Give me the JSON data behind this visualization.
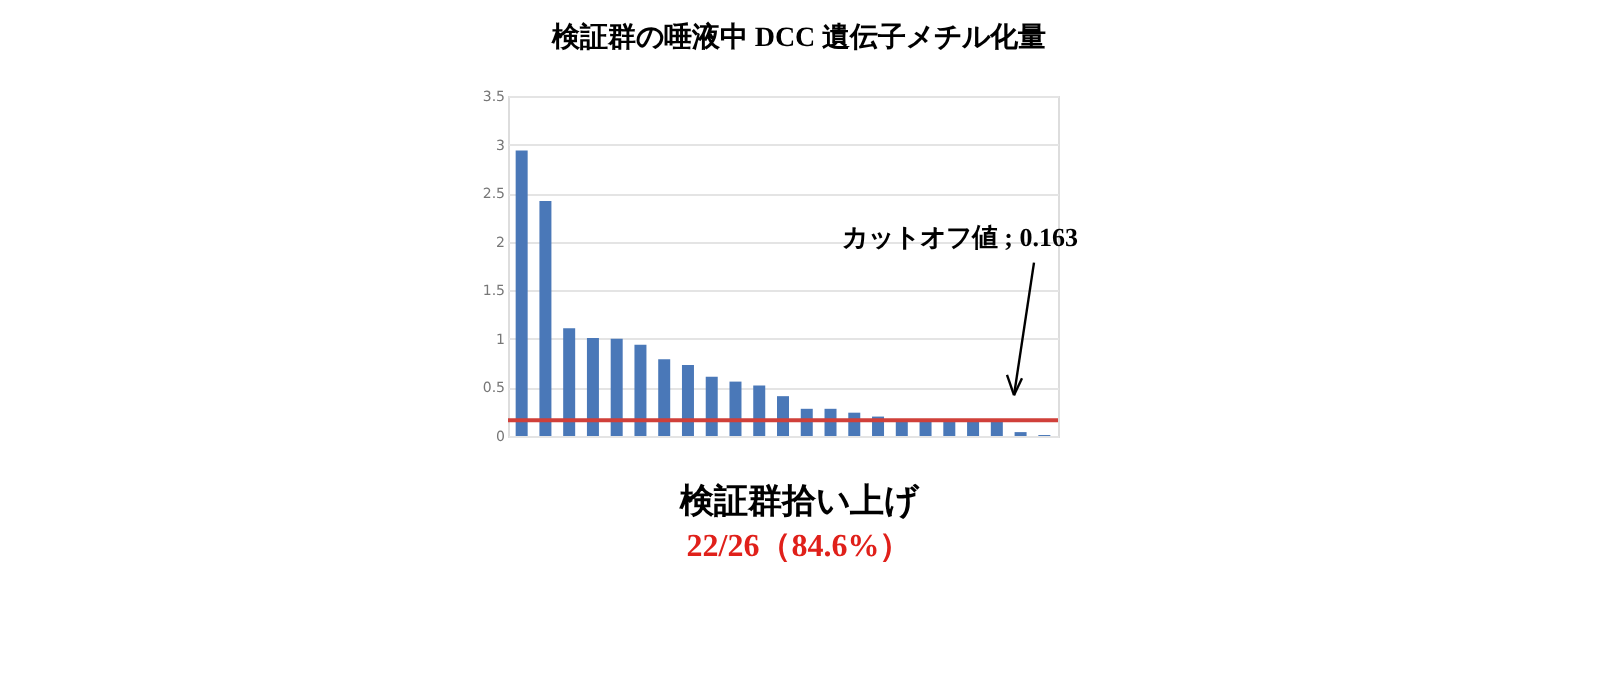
{
  "chart_data": {
    "type": "bar",
    "title": "検証群の唾液中 DCC 遺伝子メチル化量",
    "categories": [
      null,
      null,
      null,
      null,
      null,
      null,
      null,
      null,
      null,
      null,
      null,
      null,
      null,
      null,
      null,
      null,
      null,
      null,
      null,
      null,
      null,
      null,
      null
    ],
    "values": [
      2.94,
      2.42,
      1.11,
      1.01,
      1.0,
      0.94,
      0.79,
      0.73,
      0.61,
      0.56,
      0.52,
      0.41,
      0.28,
      0.28,
      0.24,
      0.2,
      0.16,
      0.16,
      0.16,
      0.16,
      0.16,
      0.04,
      0.01
    ],
    "color": "#4a78b8",
    "ylim": [
      0,
      3.5
    ],
    "yticks": [
      0,
      0.5,
      1,
      1.5,
      2,
      2.5,
      3,
      3.5
    ],
    "grid": "y",
    "ref_lines": [
      {
        "axis": "y",
        "value": 0.163,
        "color": "#d0403a"
      }
    ],
    "annotations": [
      "カットオフ値 ; 0.163",
      "検証群拾い上げ",
      "22/26（84.6%）"
    ]
  }
}
